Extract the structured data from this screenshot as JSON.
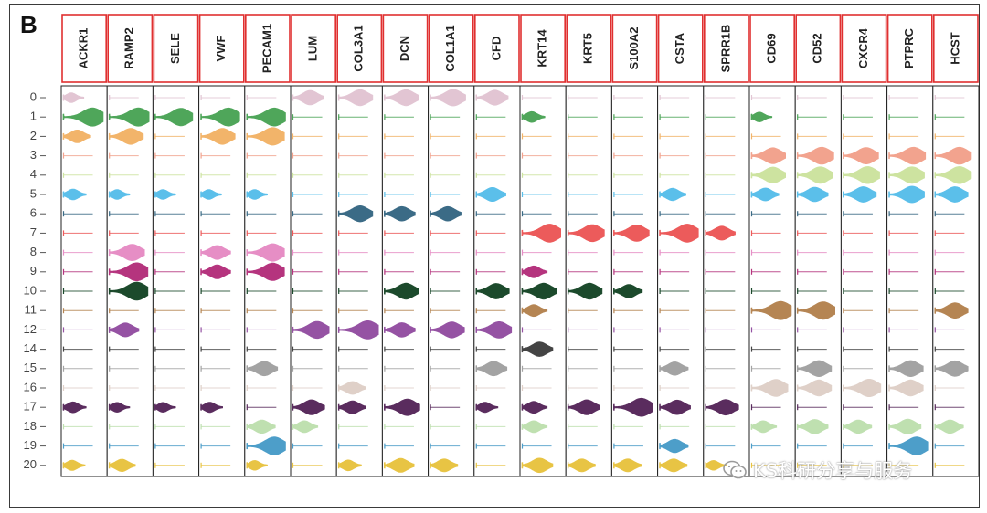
{
  "figure": {
    "panel_label": "B",
    "watermark": "KS科研分享与服务"
  },
  "chart_data": {
    "type": "stacked violin plot",
    "title": "",
    "xlabel": "",
    "ylabel": "",
    "genes": [
      "ACKR1",
      "RAMP2",
      "SELE",
      "VWF",
      "PECAM1",
      "LUM",
      "COL3A1",
      "DCN",
      "COL1A1",
      "CFD",
      "KRT14",
      "KRT5",
      "S100A2",
      "CSTA",
      "SPRR1B",
      "CD69",
      "CD52",
      "CXCR4",
      "PTPRC",
      "HCST"
    ],
    "clusters": [
      "0",
      "1",
      "2",
      "3",
      "4",
      "5",
      "6",
      "7",
      "8",
      "9",
      "10",
      "11",
      "12",
      "14",
      "15",
      "16",
      "17",
      "18",
      "19",
      "20"
    ],
    "cluster_colors": [
      "#e2c5d3",
      "#4fa65a",
      "#f2b46a",
      "#f2a38e",
      "#cde3a0",
      "#5bbfea",
      "#3b6b86",
      "#ec5b5b",
      "#e68ec5",
      "#b5347e",
      "#1c4a2c",
      "#b58553",
      "#9552a3",
      "#444444",
      "#a3a3a3",
      "#dfd0c8",
      "#5a2c5e",
      "#bfe0b0",
      "#4d9ec9",
      "#e8c444"
    ],
    "expression_level_0_to_1": [
      [
        0.1,
        0.05,
        0.05,
        0.05,
        0.05,
        0.55,
        0.7,
        0.7,
        0.75,
        0.6,
        0.05,
        0.05,
        0.05,
        0.05,
        0.03,
        0.05,
        0.05,
        0.05,
        0.05,
        0.05
      ],
      [
        0.95,
        0.95,
        0.85,
        0.9,
        0.9,
        0.05,
        0.05,
        0.05,
        0.05,
        0.05,
        0.2,
        0.05,
        0.05,
        0.05,
        0.03,
        0.1,
        0.05,
        0.05,
        0.05,
        0.05
      ],
      [
        0.4,
        0.7,
        0.05,
        0.7,
        0.85,
        0.05,
        0.05,
        0.05,
        0.05,
        0.05,
        0.05,
        0.05,
        0.05,
        0.05,
        0.03,
        0.05,
        0.05,
        0.05,
        0.05,
        0.05
      ],
      [
        0.05,
        0.05,
        0.05,
        0.05,
        0.05,
        0.05,
        0.05,
        0.05,
        0.05,
        0.05,
        0.05,
        0.05,
        0.05,
        0.05,
        0.03,
        0.7,
        0.8,
        0.75,
        0.8,
        0.8
      ],
      [
        0.05,
        0.05,
        0.05,
        0.05,
        0.05,
        0.05,
        0.05,
        0.05,
        0.05,
        0.05,
        0.05,
        0.05,
        0.05,
        0.05,
        0.03,
        0.7,
        0.75,
        0.8,
        0.75,
        0.8
      ],
      [
        0.2,
        0.1,
        0.1,
        0.1,
        0.1,
        0.05,
        0.05,
        0.05,
        0.05,
        0.5,
        0.05,
        0.05,
        0.05,
        0.35,
        0.03,
        0.4,
        0.55,
        0.65,
        0.75,
        0.65
      ],
      [
        0.05,
        0.05,
        0.05,
        0.05,
        0.05,
        0.05,
        0.7,
        0.55,
        0.55,
        0.05,
        0.05,
        0.05,
        0.05,
        0.05,
        0.03,
        0.05,
        0.05,
        0.05,
        0.05,
        0.05
      ],
      [
        0.05,
        0.05,
        0.05,
        0.05,
        0.05,
        0.05,
        0.05,
        0.05,
        0.05,
        0.05,
        0.9,
        0.8,
        0.75,
        0.9,
        0.5,
        0.05,
        0.05,
        0.05,
        0.05,
        0.05
      ],
      [
        0.05,
        0.75,
        0.05,
        0.5,
        0.85,
        0.05,
        0.05,
        0.05,
        0.05,
        0.05,
        0.05,
        0.05,
        0.05,
        0.05,
        0.03,
        0.05,
        0.05,
        0.05,
        0.05,
        0.05
      ],
      [
        0.05,
        0.9,
        0.05,
        0.5,
        0.85,
        0.05,
        0.05,
        0.05,
        0.05,
        0.05,
        0.3,
        0.05,
        0.05,
        0.05,
        0.03,
        0.05,
        0.05,
        0.05,
        0.05,
        0.05
      ],
      [
        0.05,
        0.9,
        0.05,
        0.05,
        0.05,
        0.05,
        0.05,
        0.7,
        0.05,
        0.65,
        0.7,
        0.7,
        0.45,
        0.05,
        0.03,
        0.05,
        0.05,
        0.05,
        0.05,
        0.05
      ],
      [
        0.05,
        0.05,
        0.05,
        0.05,
        0.05,
        0.05,
        0.05,
        0.05,
        0.05,
        0.05,
        0.3,
        0.05,
        0.05,
        0.05,
        0.03,
        0.95,
        0.85,
        0.05,
        0.05,
        0.65
      ],
      [
        0.05,
        0.5,
        0.05,
        0.05,
        0.05,
        0.8,
        0.95,
        0.55,
        0.7,
        0.75,
        0.05,
        0.05,
        0.05,
        0.05,
        0.03,
        0.05,
        0.05,
        0.05,
        0.05,
        0.05
      ],
      [
        0.05,
        0.05,
        0.05,
        0.05,
        0.05,
        0.05,
        0.05,
        0.05,
        0.05,
        0.05,
        0.55,
        0.05,
        0.05,
        0.05,
        0.03,
        0.05,
        0.05,
        0.05,
        0.05,
        0.05
      ],
      [
        0.05,
        0.05,
        0.05,
        0.05,
        0.55,
        0.05,
        0.05,
        0.05,
        0.05,
        0.55,
        0.05,
        0.05,
        0.05,
        0.45,
        0.03,
        0.05,
        0.7,
        0.05,
        0.7,
        0.65
      ],
      [
        0.05,
        0.05,
        0.05,
        0.05,
        0.05,
        0.05,
        0.4,
        0.05,
        0.05,
        0.05,
        0.05,
        0.05,
        0.05,
        0.05,
        0.03,
        0.8,
        0.7,
        0.85,
        0.7,
        0.05
      ],
      [
        0.2,
        0.1,
        0.1,
        0.15,
        0.05,
        0.6,
        0.4,
        0.75,
        0.05,
        0.15,
        0.3,
        0.6,
        0.9,
        0.55,
        0.65,
        0.05,
        0.05,
        0.05,
        0.05,
        0.05
      ],
      [
        0.05,
        0.05,
        0.05,
        0.05,
        0.45,
        0.3,
        0.05,
        0.05,
        0.05,
        0.05,
        0.3,
        0.05,
        0.05,
        0.05,
        0.03,
        0.3,
        0.55,
        0.45,
        0.6,
        0.45
      ],
      [
        0.05,
        0.05,
        0.05,
        0.05,
        0.9,
        0.05,
        0.05,
        0.05,
        0.05,
        0.05,
        0.05,
        0.05,
        0.05,
        0.45,
        0.03,
        0.05,
        0.05,
        0.05,
        0.9,
        0.05
      ],
      [
        0.15,
        0.35,
        0.05,
        0.05,
        0.1,
        0.05,
        0.2,
        0.5,
        0.4,
        0.05,
        0.55,
        0.4,
        0.4,
        0.4,
        0.1,
        0.05,
        0.05,
        0.05,
        0.05,
        0.05
      ]
    ]
  }
}
